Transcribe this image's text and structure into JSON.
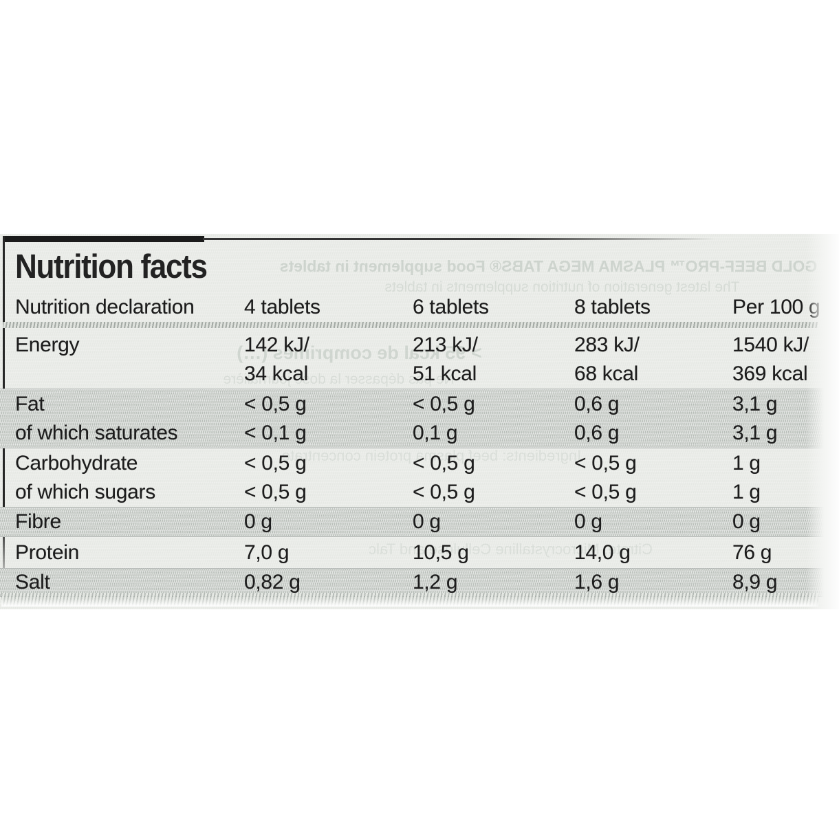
{
  "label": {
    "title": "Nutrition facts",
    "colors": {
      "background": "#ebede9",
      "band_gray": "#cbcfca",
      "text": "#1c1c1c",
      "border_bar": "#1b1b1b"
    },
    "table": {
      "header": [
        "Nutrition declaration",
        "4 tablets",
        "6 tablets",
        "8 tablets",
        "Per 100 g"
      ],
      "rows": [
        {
          "label": "Energy",
          "cells": [
            "142 kJ/\n34 kcal",
            "213 kJ/\n51 kcal",
            "283 kJ/\n68 kcal",
            "1540 kJ/\n369 kcal"
          ]
        },
        {
          "label": "Fat",
          "cells": [
            "< 0,5 g",
            "< 0,5 g",
            "0,6 g",
            "3,1 g"
          ]
        },
        {
          "label": "of which saturates",
          "cells": [
            "< 0,1 g",
            "0,1 g",
            "0,6 g",
            "3,1 g"
          ]
        },
        {
          "label": "Carbohydrate",
          "cells": [
            "< 0,5 g",
            "< 0,5 g",
            "< 0,5 g",
            "1 g"
          ]
        },
        {
          "label": "of which sugars",
          "cells": [
            "< 0,5 g",
            "< 0,5 g",
            "< 0,5 g",
            "1 g"
          ]
        },
        {
          "label": "Fibre",
          "cells": [
            "0 g",
            "0 g",
            "0 g",
            "0 g"
          ]
        },
        {
          "label": "Protein",
          "cells": [
            "7,0 g",
            "10,5 g",
            "14,0 g",
            "76 g"
          ]
        },
        {
          "label": "Salt",
          "cells": [
            "0,82 g",
            "1,2 g",
            "1,6 g",
            "8,9 g"
          ]
        }
      ]
    },
    "show_through": {
      "lines": [
        "GOLD BEEF-PRO™ PLASMA MEGA TABS® Food supplement in tablets",
        "The latest generation of nutrition supplements in tablets",
        "> 95 kcal de comprimés (…)",
        "Ne pas dépasser la dose journalière",
        "Ingredients: beef plasma protein concentrate",
        "Citrate, Microcrystalline Cellulose and Talc"
      ]
    }
  }
}
